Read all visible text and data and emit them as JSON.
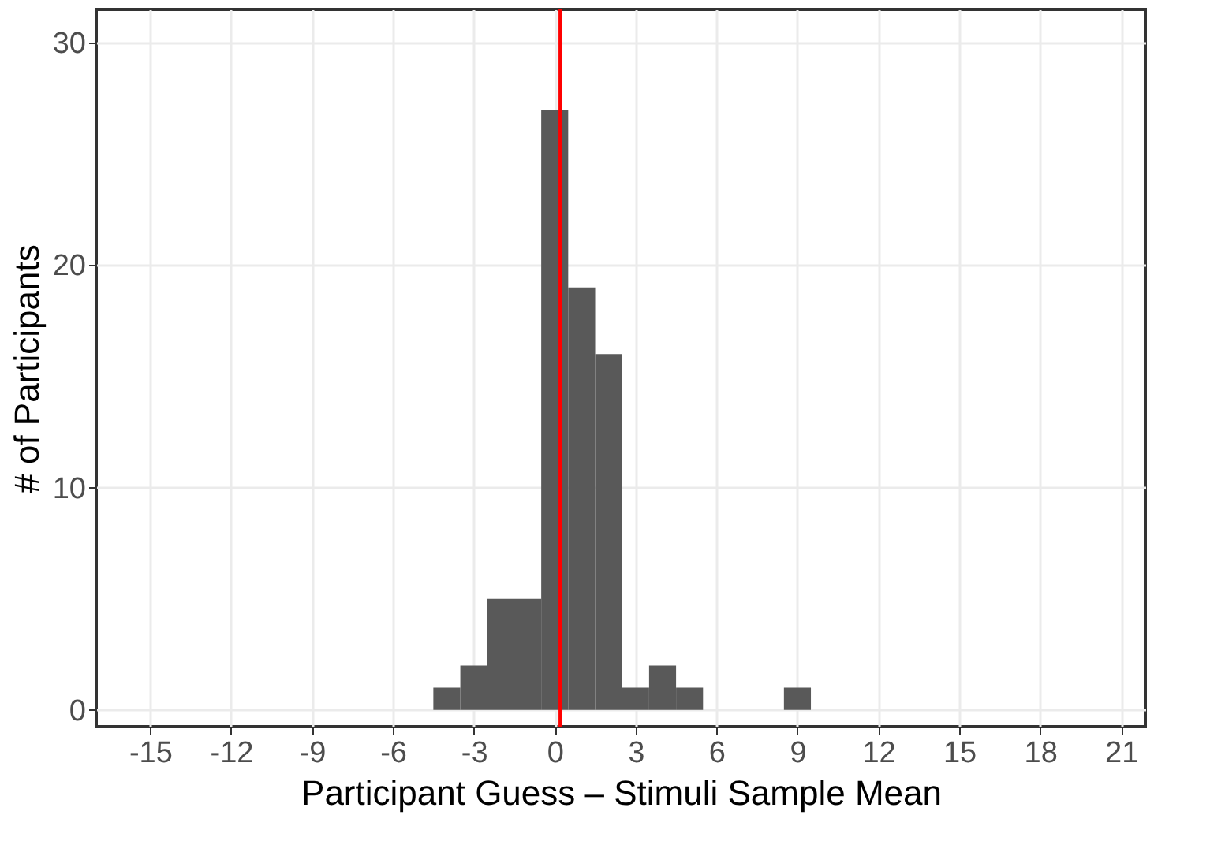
{
  "chart_data": {
    "type": "histogram",
    "xlabel": "Participant Guess – Stimuli Sample Mean",
    "ylabel": "# of Participants",
    "bins": [
      -4.5,
      -3.5,
      -2.5,
      -1.5,
      -0.5,
      0.5,
      1.5,
      2.5,
      3.5,
      4.5,
      5.5,
      6.5,
      7.5,
      8.5,
      9.5
    ],
    "values": [
      1,
      2,
      5,
      5,
      27,
      19,
      16,
      1,
      2,
      1,
      0,
      0,
      0,
      1
    ],
    "color": "#595959",
    "xlim": [
      -17,
      21.9
    ],
    "xticks": [
      -15,
      -12,
      -9,
      -6,
      -3,
      0,
      3,
      6,
      9,
      12,
      15,
      18,
      21
    ],
    "ylim": [
      -0.75,
      31.5
    ],
    "yticks": [
      0,
      10,
      20,
      30
    ],
    "grid": true,
    "ref_lines": [
      {
        "axis": "x",
        "value": 0.2,
        "color": "#ff0000"
      }
    ]
  }
}
